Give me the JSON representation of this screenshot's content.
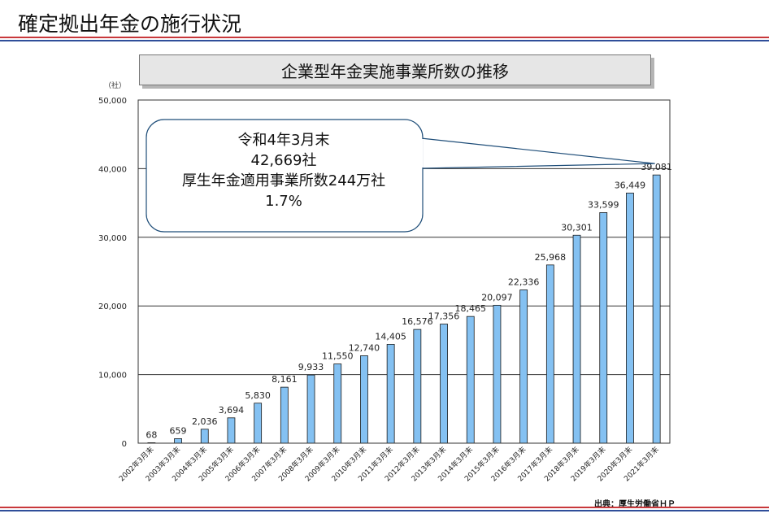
{
  "slide": {
    "title": "確定拠出年金の施行状況",
    "source": "出典：厚生労働省ＨＰ"
  },
  "chart_data": {
    "type": "bar",
    "title": "企業型年金実施事業所数の推移",
    "ylabel": "（社）",
    "xlabel": "",
    "ylim": [
      0,
      50000
    ],
    "yticks": [
      0,
      10000,
      20000,
      30000,
      40000,
      50000
    ],
    "ytick_labels": [
      "0",
      "10,000",
      "20,000",
      "30,000",
      "40,000",
      "50,000"
    ],
    "grid": true,
    "categories": [
      "2002年3月末",
      "2003年3月末",
      "2004年3月末",
      "2005年3月末",
      "2006年3月末",
      "2007年3月末",
      "2008年3月末",
      "2009年3月末",
      "2010年3月末",
      "2011年3月末",
      "2012年3月末",
      "2013年3月末",
      "2014年3月末",
      "2015年3月末",
      "2016年3月末",
      "2017年3月末",
      "2018年3月末",
      "2019年3月末",
      "2020年3月末",
      "2021年3月末"
    ],
    "values": [
      68,
      659,
      2036,
      3694,
      5830,
      8161,
      9933,
      11550,
      12740,
      14405,
      16576,
      17356,
      18465,
      20097,
      22336,
      25968,
      30301,
      33599,
      36449,
      39081
    ],
    "value_labels": [
      "68",
      "659",
      "2,036",
      "3,694",
      "5,830",
      "8,161",
      "9,933",
      "11,550",
      "12,740",
      "14,405",
      "16,576",
      "17,356",
      "18,465",
      "20,097",
      "22,336",
      "25,968",
      "30,301",
      "33,599",
      "36,449",
      "39,081"
    ],
    "bar_color": "#84c1f2",
    "callout": {
      "lines": [
        "令和4年3月末",
        "42,669社",
        "厚生年金適用事業所数244万社",
        "1.7%"
      ]
    }
  }
}
